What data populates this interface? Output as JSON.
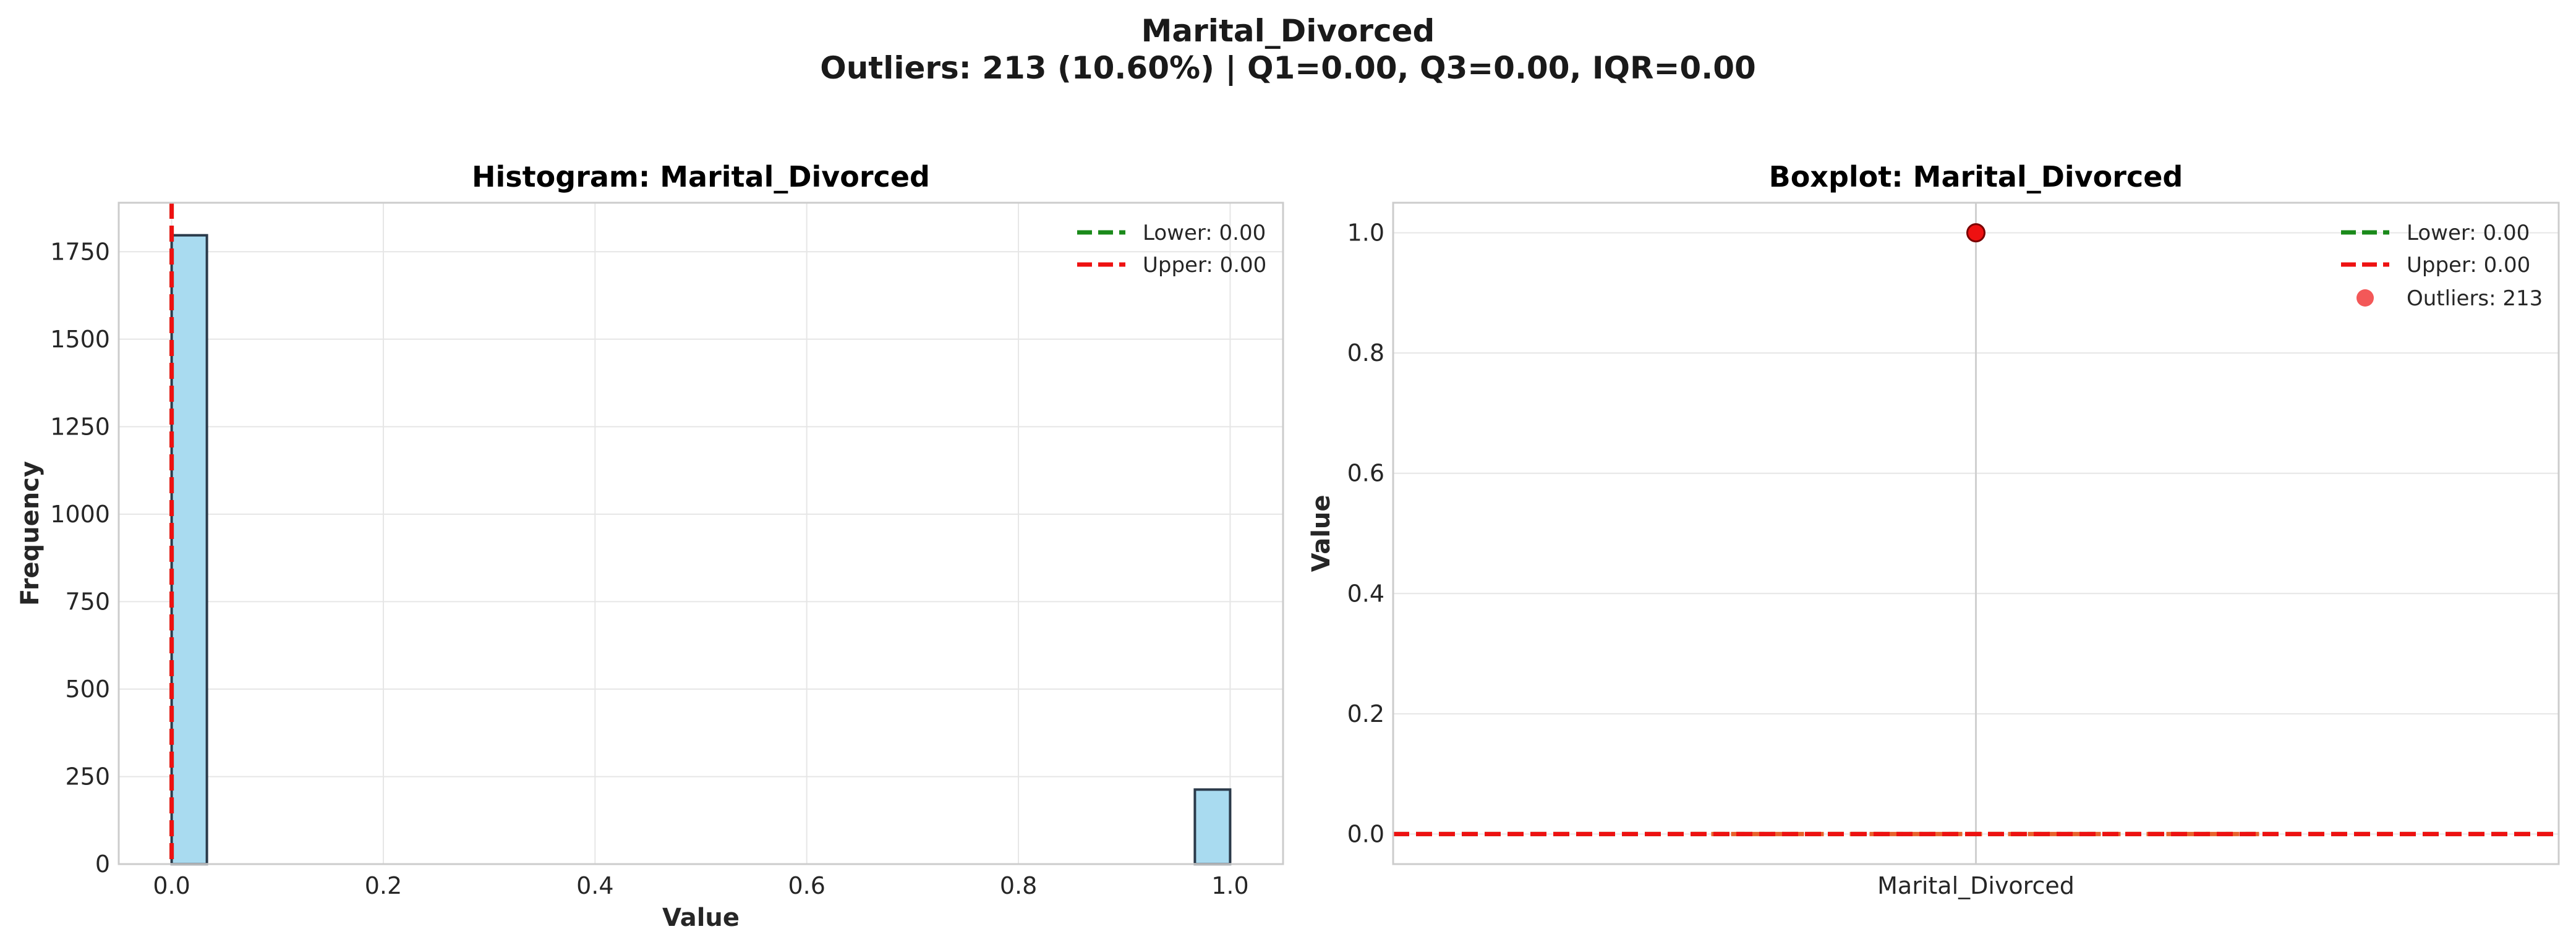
{
  "figure": {
    "title": "Marital_Divorced",
    "subtitle": "Outliers: 213 (10.60%) | Q1=0.00, Q3=0.00, IQR=0.00"
  },
  "colors": {
    "bar_fill": "#a9dbf0",
    "bar_edge": "#2b3a4a",
    "lower_line": "#1a8a1a",
    "upper_line": "#ee1111",
    "outlier": "#ee1111",
    "median": "#e8622c",
    "grid": "#e6e6e6",
    "frame": "#cccccc"
  },
  "chart_data": [
    {
      "type": "bar",
      "title": "Histogram: Marital_Divorced",
      "xlabel": "Value",
      "ylabel": "Frequency",
      "xlim": [
        -0.05,
        1.05
      ],
      "ylim": [
        0,
        1890
      ],
      "xticks": [
        "0.0",
        "0.2",
        "0.4",
        "0.6",
        "0.8",
        "1.0"
      ],
      "yticks": [
        "0",
        "250",
        "500",
        "750",
        "1000",
        "1250",
        "1500",
        "1750"
      ],
      "bins": [
        {
          "x0": 0.0,
          "x1": 0.0333,
          "count": 1797
        },
        {
          "x0": 0.9667,
          "x1": 1.0,
          "count": 213
        }
      ],
      "lines": [
        {
          "label": "Lower: 0.00",
          "value": 0.0,
          "color": "#1a8a1a"
        },
        {
          "label": "Upper: 0.00",
          "value": 0.0,
          "color": "#ee1111"
        }
      ],
      "legend": "top-right",
      "grid": true
    },
    {
      "type": "boxplot",
      "title": "Boxplot: Marital_Divorced",
      "ylabel": "Value",
      "category": "Marital_Divorced",
      "ylim": [
        -0.05,
        1.05
      ],
      "yticks": [
        "0.0",
        "0.2",
        "0.4",
        "0.6",
        "0.8",
        "1.0"
      ],
      "q1": 0.0,
      "median": 0.0,
      "q3": 0.0,
      "outliers": [
        1.0
      ],
      "lines": [
        {
          "label": "Lower: 0.00",
          "value": 0.0,
          "color": "#1a8a1a"
        },
        {
          "label": "Upper: 0.00",
          "value": 0.0,
          "color": "#ee1111"
        }
      ],
      "outlier_legend": "Outliers: 213",
      "legend": "top-right",
      "grid": true
    }
  ]
}
